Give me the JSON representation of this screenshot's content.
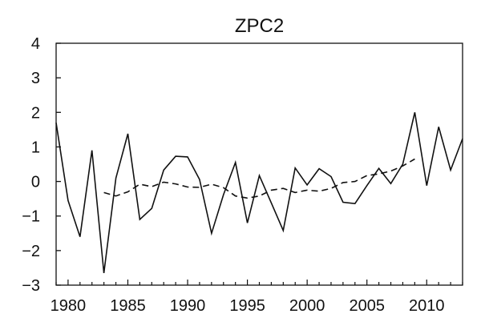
{
  "chart_data": {
    "type": "line",
    "title": "ZPC2",
    "xlabel": "",
    "ylabel": "",
    "xlim": [
      1979,
      2013
    ],
    "ylim": [
      -3,
      4
    ],
    "x_ticks": [
      1980,
      1985,
      1990,
      1995,
      2000,
      2005,
      2010
    ],
    "y_ticks": [
      4,
      3,
      2,
      1,
      0,
      -1,
      -2,
      -3
    ],
    "y_tick_labels": [
      "4",
      "3",
      "2",
      "1",
      "0",
      "−1",
      "−2",
      "−3"
    ],
    "grid": false,
    "series": [
      {
        "style": "solid",
        "x": [
          1979,
          1980,
          1981,
          1982,
          1983,
          1984,
          1985,
          1986,
          1987,
          1988,
          1989,
          1990,
          1991,
          1992,
          1993,
          1994,
          1995,
          1996,
          1997,
          1998,
          1999,
          2000,
          2001,
          2002,
          2003,
          2004,
          2005,
          2006,
          2007,
          2008,
          2009,
          2010,
          2011,
          2012,
          2013
        ],
        "values": [
          1.7,
          -0.55,
          -1.6,
          0.9,
          -2.65,
          0.1,
          1.38,
          -1.1,
          -0.78,
          0.33,
          0.73,
          0.71,
          0.06,
          -1.5,
          -0.38,
          0.55,
          -1.2,
          0.17,
          -0.62,
          -1.42,
          0.39,
          -0.1,
          0.37,
          0.14,
          -0.6,
          -0.64,
          -0.12,
          0.38,
          -0.06,
          0.5,
          2.0,
          -0.12,
          1.58,
          0.33,
          1.24
        ]
      },
      {
        "style": "dashed",
        "x": [
          1983,
          1984,
          1985,
          1986,
          1987,
          1988,
          1989,
          1990,
          1991,
          1992,
          1993,
          1994,
          1995,
          1996,
          1997,
          1998,
          1999,
          2000,
          2001,
          2002,
          2003,
          2004,
          2005,
          2006,
          2007,
          2008,
          2009
        ],
        "values": [
          -0.32,
          -0.42,
          -0.3,
          -0.08,
          -0.15,
          -0.02,
          -0.07,
          -0.16,
          -0.17,
          -0.08,
          -0.18,
          -0.42,
          -0.48,
          -0.42,
          -0.25,
          -0.2,
          -0.32,
          -0.25,
          -0.28,
          -0.2,
          -0.03,
          0.0,
          0.17,
          0.22,
          0.3,
          0.45,
          0.65
        ]
      }
    ]
  }
}
